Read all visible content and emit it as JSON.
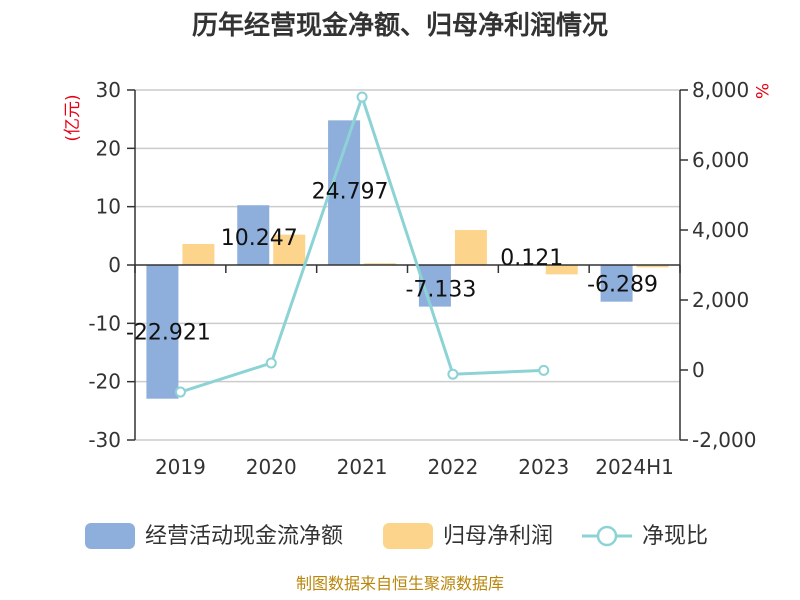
{
  "title": "历年经营现金净额、归母净利润情况",
  "left_axis_unit": "(亿元)",
  "right_axis_unit": "%",
  "source": "制图数据来自恒生聚源数据库",
  "colors": {
    "operating_cash": "#8eaedc",
    "net_profit": "#fdd48c",
    "ratio": "#8dd3d6",
    "grid": "#cccccc",
    "axis": "#333333",
    "unit": "#e60012",
    "source": "#b8860b"
  },
  "chart_data": {
    "type": "bar",
    "categories": [
      "2019",
      "2020",
      "2021",
      "2022",
      "2023",
      "2024H1"
    ],
    "series": [
      {
        "name": "经营活动现金流净额",
        "type": "bar",
        "axis": "left",
        "values": [
          -22.921,
          10.247,
          24.797,
          -7.133,
          0.121,
          -6.289
        ],
        "labels": [
          "-22.921",
          "10.247",
          "24.797",
          "-7.133",
          "0.121",
          "-6.289"
        ]
      },
      {
        "name": "归母净利润",
        "type": "bar",
        "axis": "left",
        "values": [
          3.6,
          5.2,
          0.3,
          6.0,
          -1.6,
          -0.4
        ]
      },
      {
        "name": "净现比",
        "type": "line",
        "axis": "right",
        "values": [
          -630,
          200,
          7800,
          -120,
          -10,
          null
        ]
      }
    ],
    "left_axis": {
      "min": -30,
      "max": 30,
      "ticks": [
        30,
        20,
        10,
        0,
        -10,
        -20,
        -30
      ],
      "tick_labels": [
        "30",
        "20",
        "10",
        "0",
        "-10",
        "-20",
        "-30"
      ]
    },
    "right_axis": {
      "min": -2000,
      "max": 8000,
      "ticks": [
        8000,
        6000,
        4000,
        2000,
        0,
        -2000
      ],
      "tick_labels": [
        "8,000",
        "6,000",
        "4,000",
        "2,000",
        "0",
        "-2,000"
      ]
    },
    "grid": true,
    "legend_position": "bottom"
  }
}
